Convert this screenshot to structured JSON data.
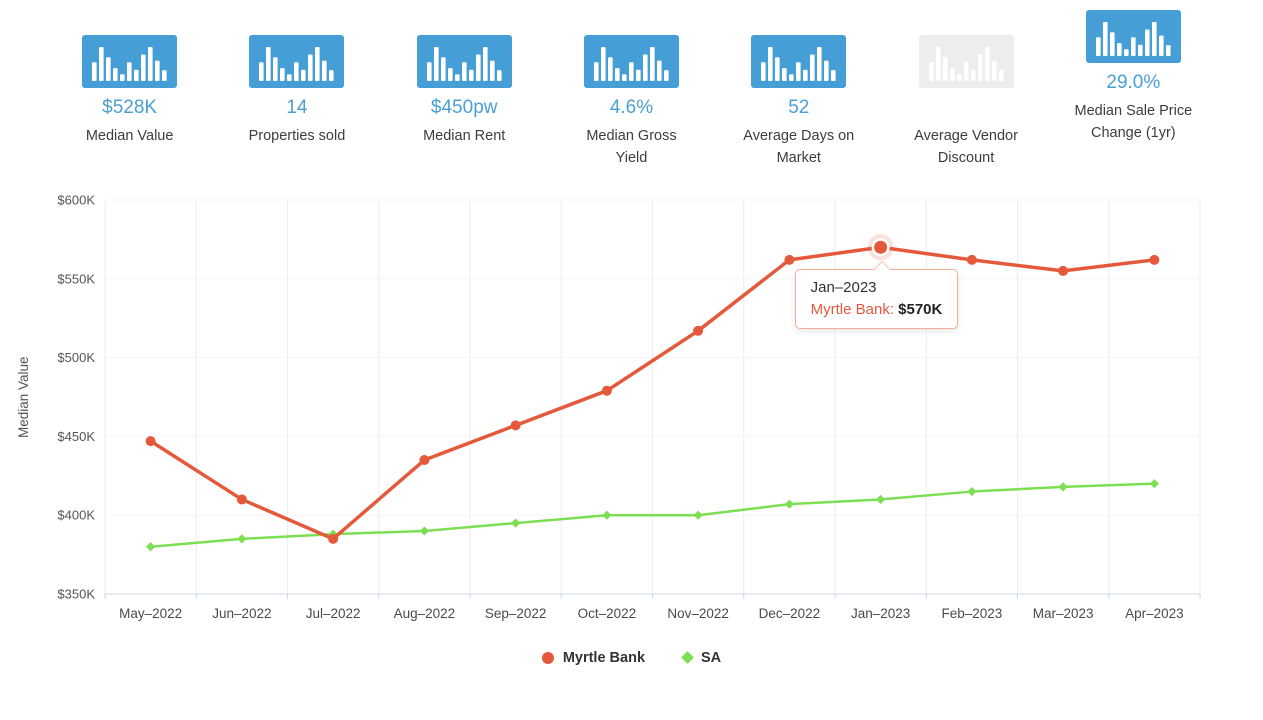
{
  "stats": {
    "value_color": "#4aa0d5",
    "icon_bg": "#459ed6",
    "icon_bg_disabled": "#ededed",
    "items": [
      {
        "value": "$528K",
        "label": "Median Value",
        "icon": "bar-chart-icon",
        "disabled": false
      },
      {
        "value": "14",
        "label": "Properties sold",
        "icon": "bar-chart-icon",
        "disabled": false
      },
      {
        "value": "$450pw",
        "label": "Median Rent",
        "icon": "bar-chart-icon",
        "disabled": false
      },
      {
        "value": "4.6%",
        "label": "Median Gross Yield",
        "icon": "bar-chart-icon",
        "disabled": false
      },
      {
        "value": "52",
        "label": "Average Days on Market",
        "icon": "bar-chart-icon",
        "disabled": false
      },
      {
        "value": "",
        "label": "Average Vendor Discount",
        "icon": "bar-chart-icon",
        "disabled": true
      },
      {
        "value": "29.0%",
        "label": "Median Sale Price Change (1yr)",
        "icon": "bar-chart-icon",
        "disabled": false
      }
    ]
  },
  "chart_data": {
    "type": "line",
    "ylabel": "Median Value",
    "x": [
      "May–2022",
      "Jun–2022",
      "Jul–2022",
      "Aug–2022",
      "Sep–2022",
      "Oct–2022",
      "Nov–2022",
      "Dec–2022",
      "Jan–2023",
      "Feb–2023",
      "Mar–2023",
      "Apr–2023"
    ],
    "ylim": [
      350,
      600
    ],
    "yticks": [
      350,
      400,
      450,
      500,
      550,
      600
    ],
    "ytick_labels": [
      "$350K",
      "$400K",
      "$450K",
      "$500K",
      "$550K",
      "$600K"
    ],
    "grid": "vertical",
    "legend_position": "bottom",
    "series": [
      {
        "name": "Myrtle Bank",
        "color": "#e4593b",
        "marker": "circle",
        "values": [
          447,
          410,
          385,
          435,
          457,
          479,
          517,
          562,
          570,
          562,
          555,
          562
        ]
      },
      {
        "name": "SA",
        "color": "#7cdf53",
        "marker": "diamond",
        "values": [
          380,
          385,
          388,
          390,
          395,
          400,
          400,
          407,
          410,
          415,
          418,
          420
        ]
      }
    ],
    "highlight": {
      "series": "Myrtle Bank",
      "x": "Jan–2023",
      "x_index": 8,
      "value": 570
    },
    "tooltip": {
      "title": "Jan–2023",
      "series_label": "Myrtle Bank:",
      "value": "$570K"
    }
  }
}
